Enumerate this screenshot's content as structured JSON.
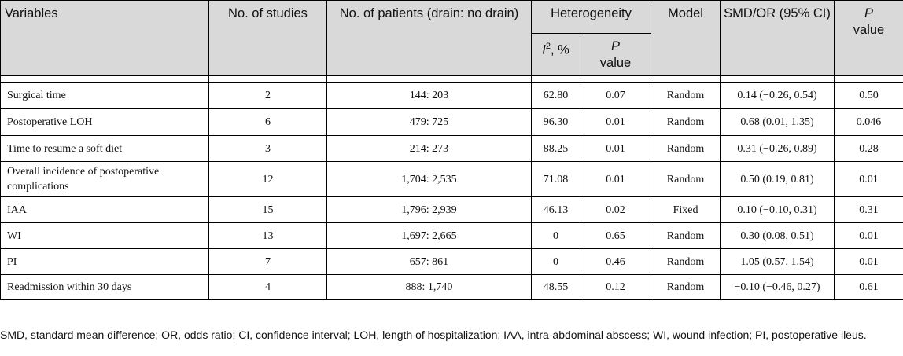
{
  "table": {
    "headers": {
      "variables": "Variables",
      "studies": "No. of studies",
      "patients": "No. of patients (drain: no drain)",
      "heterogeneity": "Heterogeneity",
      "i2_symbol": "I",
      "i2_sup": "2",
      "i2_suffix": ", %",
      "het_p_italic": "P",
      "het_p_suffix": "value",
      "model": "Model",
      "smd": "SMD/OR (95% CI)",
      "p_italic": "P",
      "p_suffix": "value"
    },
    "rows": [
      {
        "variable": "Surgical time",
        "studies": "2",
        "patients": "144: 203",
        "i2": "62.80",
        "het_p": "0.07",
        "model": "Random",
        "smd": "0.14 (−0.26, 0.54)",
        "p": "0.50"
      },
      {
        "variable": "Postoperative LOH",
        "studies": "6",
        "patients": "479: 725",
        "i2": "96.30",
        "het_p": "0.01",
        "model": "Random",
        "smd": "0.68 (0.01, 1.35)",
        "p": "0.046"
      },
      {
        "variable": "Time to resume a soft diet",
        "studies": "3",
        "patients": "214: 273",
        "i2": "88.25",
        "het_p": "0.01",
        "model": "Random",
        "smd": "0.31 (−0.26, 0.89)",
        "p": "0.28"
      },
      {
        "variable": "Overall incidence of postoperative complications",
        "studies": "12",
        "patients": "1,704: 2,535",
        "i2": "71.08",
        "het_p": "0.01",
        "model": "Random",
        "smd": "0.50 (0.19, 0.81)",
        "p": "0.01"
      },
      {
        "variable": "IAA",
        "studies": "15",
        "patients": "1,796: 2,939",
        "i2": "46.13",
        "het_p": "0.02",
        "model": "Fixed",
        "smd": "0.10 (−0.10, 0.31)",
        "p": "0.31"
      },
      {
        "variable": "WI",
        "studies": "13",
        "patients": "1,697: 2,665",
        "i2": "0",
        "het_p": "0.65",
        "model": "Random",
        "smd": "0.30 (0.08, 0.51)",
        "p": "0.01"
      },
      {
        "variable": "PI",
        "studies": "7",
        "patients": "657: 861",
        "i2": "0",
        "het_p": "0.46",
        "model": "Random",
        "smd": "1.05 (0.57, 1.54)",
        "p": "0.01"
      },
      {
        "variable": "Readmission within 30 days",
        "studies": "4",
        "patients": "888: 1,740",
        "i2": "48.55",
        "het_p": "0.12",
        "model": "Random",
        "smd": "−0.10 (−0.46, 0.27)",
        "p": "0.61"
      }
    ]
  },
  "footnote": "SMD, standard mean difference; OR, odds ratio; CI, confidence interval; LOH, length of hospitalization; IAA, intra-abdominal abscess; WI, wound infection; PI, postoperative ileus."
}
